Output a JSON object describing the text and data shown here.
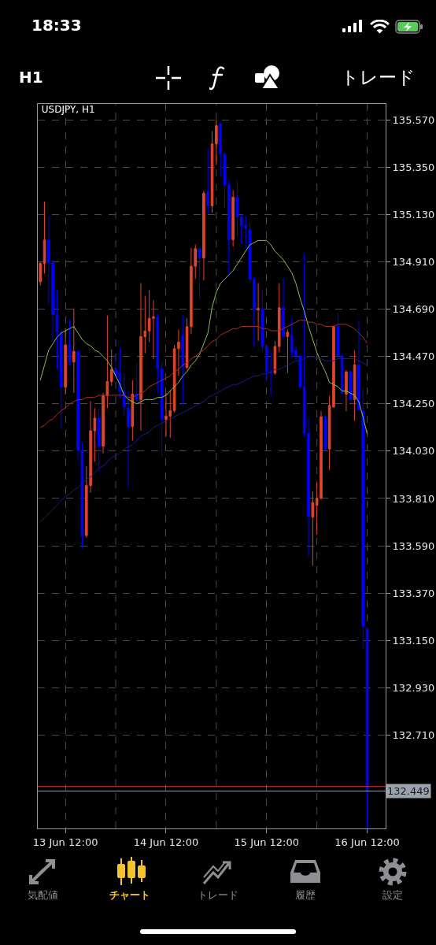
{
  "chart_data": {
    "type": "candlestick",
    "title": "USDJPY, H1",
    "categories": [
      null,
      null,
      null,
      null,
      null,
      null,
      "13 Jun 12:00",
      null,
      null,
      null,
      null,
      null,
      null,
      null,
      null,
      null,
      null,
      null,
      null,
      null,
      null,
      null,
      null,
      null,
      null,
      null,
      null,
      null,
      null,
      null,
      "14 Jun 12:00",
      null,
      null,
      null,
      null,
      null,
      null,
      null,
      null,
      null,
      null,
      null,
      null,
      null,
      null,
      null,
      null,
      null,
      null,
      null,
      null,
      null,
      null,
      null,
      "15 Jun 12:00",
      null,
      null,
      null,
      null,
      null,
      null,
      null,
      null,
      null,
      null,
      null,
      null,
      null,
      null,
      null,
      null,
      null,
      null,
      null,
      null,
      null,
      null,
      null,
      "16 Jun 12:00"
    ],
    "ylim": [
      132.275,
      135.645
    ],
    "yticks": [
      {
        "value": 132.71,
        "label": "132.710"
      },
      {
        "value": 132.93,
        "label": "132.930"
      },
      {
        "value": 133.15,
        "label": "133.150"
      },
      {
        "value": 133.37,
        "label": "133.370"
      },
      {
        "value": 133.59,
        "label": "133.590"
      },
      {
        "value": 133.81,
        "label": "133.810"
      },
      {
        "value": 134.03,
        "label": "134.030"
      },
      {
        "value": 134.25,
        "label": "134.250"
      },
      {
        "value": 134.47,
        "label": "134.470"
      },
      {
        "value": 134.69,
        "label": "134.690"
      },
      {
        "value": 134.91,
        "label": "134.910"
      },
      {
        "value": 135.13,
        "label": "135.130"
      },
      {
        "value": 135.35,
        "label": "135.350"
      },
      {
        "value": 135.57,
        "label": "135.570"
      }
    ],
    "grid": true,
    "series": [
      {
        "type": "line",
        "color": "#8cc152",
        "values": [
          134.36,
          134.43,
          134.5,
          134.53,
          134.56,
          134.58,
          134.59,
          134.6,
          134.61,
          134.58,
          134.55,
          134.53,
          134.52,
          134.5,
          134.49,
          134.47,
          134.45,
          134.42,
          134.38,
          134.34,
          134.29,
          134.27,
          134.26,
          134.25,
          134.26,
          134.27,
          134.27,
          134.27,
          134.28,
          134.28,
          134.29,
          134.31,
          134.33,
          134.35,
          134.38,
          134.4,
          134.43,
          134.45,
          134.48,
          134.53,
          134.58,
          134.7,
          134.77,
          134.81,
          134.83,
          134.85,
          134.87,
          134.9,
          134.93,
          134.96,
          134.99,
          135.0,
          135.01,
          135.01,
          135.01,
          134.99,
          134.96,
          134.94,
          134.92,
          134.89,
          134.86,
          134.81,
          134.74,
          134.68,
          134.61,
          134.55,
          134.49,
          134.44,
          134.4,
          134.35,
          134.34,
          134.33,
          134.31,
          134.31,
          134.3,
          134.29,
          134.26,
          134.19,
          134.11
        ]
      },
      {
        "type": "line",
        "color": "#a8321e",
        "values": [
          134.14,
          134.15,
          134.17,
          134.18,
          134.2,
          134.22,
          134.23,
          134.25,
          134.26,
          134.27,
          134.27,
          134.28,
          134.28,
          134.28,
          134.29,
          134.29,
          134.29,
          134.29,
          134.29,
          134.29,
          134.29,
          134.28,
          134.28,
          134.29,
          134.3,
          134.31,
          134.33,
          134.34,
          134.35,
          134.36,
          134.37,
          134.38,
          134.4,
          134.41,
          134.43,
          134.44,
          134.46,
          134.47,
          134.49,
          134.5,
          134.52,
          134.54,
          134.55,
          134.57,
          134.58,
          134.59,
          134.6,
          134.6,
          134.61,
          134.61,
          134.61,
          134.61,
          134.61,
          134.6,
          134.6,
          134.59,
          134.59,
          134.59,
          134.6,
          134.61,
          134.62,
          134.63,
          134.64,
          134.64,
          134.63,
          134.63,
          134.62,
          134.62,
          134.61,
          134.61,
          134.61,
          134.62,
          134.62,
          134.62,
          134.61,
          134.6,
          134.58,
          134.56,
          134.53
        ]
      },
      {
        "type": "line",
        "color": "#1c1c8f",
        "values": [
          133.7,
          133.72,
          133.74,
          133.76,
          133.78,
          133.8,
          133.82,
          133.83,
          133.85,
          133.86,
          133.88,
          133.9,
          133.91,
          133.93,
          133.95,
          133.96,
          133.98,
          134.0,
          134.01,
          134.02,
          134.04,
          134.05,
          134.06,
          134.08,
          134.1,
          134.11,
          134.12,
          134.14,
          134.15,
          134.16,
          134.17,
          134.18,
          134.19,
          134.2,
          134.21,
          134.22,
          134.23,
          134.24,
          134.25,
          134.26,
          134.28,
          134.29,
          134.3,
          134.31,
          134.32,
          134.33,
          134.34,
          134.34,
          134.35,
          134.36,
          134.37,
          134.38,
          134.38,
          134.39,
          134.39,
          134.4,
          134.41,
          134.41,
          134.42,
          134.43,
          134.44,
          134.45,
          134.45,
          134.46,
          134.47,
          134.47,
          134.46,
          134.46,
          134.45,
          134.45,
          134.45,
          134.46,
          134.46,
          134.46,
          134.46,
          134.46,
          134.45,
          134.44,
          134.43
        ]
      },
      {
        "type": "candlestick",
        "ohlc": [
          [
            134.818,
            134.91,
            134.8,
            134.903
          ],
          [
            134.903,
            135.191,
            134.857,
            135.012
          ],
          [
            135.012,
            135.125,
            134.713,
            134.906
          ],
          [
            134.906,
            134.92,
            134.543,
            134.664
          ],
          [
            134.664,
            134.779,
            134.413,
            134.583
          ],
          [
            134.583,
            134.596,
            134.131,
            134.328
          ],
          [
            134.328,
            134.602,
            134.295,
            134.524
          ],
          [
            134.524,
            134.641,
            134.426,
            134.445
          ],
          [
            134.445,
            134.694,
            134.301,
            134.494
          ],
          [
            134.494,
            134.5,
            133.994,
            134.033
          ],
          [
            134.033,
            134.073,
            133.582,
            133.634
          ],
          [
            133.638,
            133.961,
            133.628,
            133.87
          ],
          [
            133.87,
            134.262,
            133.837,
            134.125
          ],
          [
            134.125,
            134.23,
            133.981,
            134.184
          ],
          [
            134.184,
            134.23,
            133.935,
            134.053
          ],
          [
            134.053,
            134.301,
            134.02,
            134.288
          ],
          [
            134.288,
            134.661,
            134.23,
            134.354
          ],
          [
            134.354,
            134.504,
            134.334,
            134.41
          ],
          [
            134.41,
            134.471,
            134.373,
            134.38
          ],
          [
            134.393,
            134.511,
            134.275,
            134.308
          ],
          [
            134.308,
            134.393,
            134.197,
            134.236
          ],
          [
            134.229,
            134.308,
            133.863,
            134.145
          ],
          [
            134.145,
            134.36,
            134.079,
            134.295
          ],
          [
            134.295,
            134.439,
            134.256,
            134.269
          ],
          [
            134.269,
            134.812,
            134.125,
            134.563
          ],
          [
            134.563,
            134.753,
            134.485,
            134.589
          ],
          [
            134.589,
            134.779,
            134.537,
            134.648
          ],
          [
            134.648,
            134.733,
            134.458,
            134.655
          ],
          [
            134.655,
            134.67,
            134.301,
            134.413
          ],
          [
            134.413,
            134.445,
            134.007,
            134.177
          ],
          [
            134.177,
            134.301,
            134.099,
            134.193
          ],
          [
            134.193,
            134.315,
            134.092,
            134.219
          ],
          [
            134.219,
            134.524,
            134.21,
            134.507
          ],
          [
            134.507,
            134.596,
            134.38,
            134.537
          ],
          [
            134.57,
            134.661,
            134.243,
            134.426
          ],
          [
            134.419,
            134.648,
            134.413,
            134.609
          ],
          [
            134.609,
            134.975,
            134.576,
            134.89
          ],
          [
            134.89,
            134.991,
            134.831,
            134.972
          ],
          [
            134.972,
            134.975,
            134.74,
            134.929
          ],
          [
            134.929,
            135.24,
            134.825,
            135.23
          ],
          [
            135.237,
            135.439,
            135.132,
            135.171
          ],
          [
            135.171,
            135.518,
            135.139,
            135.459
          ],
          [
            135.459,
            135.57,
            135.361,
            135.544
          ],
          [
            135.553,
            135.557,
            135.309,
            135.413
          ],
          [
            135.413,
            135.42,
            135.158,
            135.269
          ],
          [
            135.269,
            135.296,
            134.857,
            135.014
          ],
          [
            135.014,
            135.243,
            134.982,
            135.211
          ],
          [
            135.211,
            135.289,
            135.027,
            135.119
          ],
          [
            135.119,
            135.132,
            134.995,
            135.08
          ],
          [
            135.08,
            135.125,
            134.975,
            135.067
          ],
          [
            135.06,
            135.093,
            134.812,
            134.831
          ],
          [
            134.831,
            134.844,
            134.517,
            134.687
          ],
          [
            134.687,
            134.812,
            134.543,
            134.694
          ],
          [
            134.694,
            134.779,
            134.491,
            134.517
          ],
          [
            134.517,
            134.52,
            134.36,
            134.4
          ],
          [
            134.4,
            134.498,
            134.288,
            134.393
          ],
          [
            134.393,
            134.543,
            134.386,
            134.517
          ],
          [
            134.517,
            134.812,
            134.491,
            134.697
          ],
          [
            134.697,
            134.831,
            134.556,
            134.563
          ],
          [
            134.563,
            134.596,
            134.393,
            134.583
          ],
          [
            134.57,
            134.648,
            134.465,
            134.491
          ],
          [
            134.498,
            134.52,
            134.458,
            134.472
          ],
          [
            134.472,
            134.48,
            134.32,
            134.328
          ],
          [
            134.328,
            134.949,
            134.099,
            134.112
          ],
          [
            134.112,
            134.184,
            133.54,
            133.726
          ],
          [
            133.723,
            133.844,
            133.497,
            133.791
          ],
          [
            133.778,
            133.883,
            133.641,
            133.811
          ],
          [
            133.811,
            134.216,
            133.804,
            134.19
          ],
          [
            134.19,
            134.197,
            134.033,
            134.04
          ],
          [
            134.04,
            134.288,
            133.942,
            134.243
          ],
          [
            134.236,
            134.615,
            134.23,
            134.609
          ],
          [
            134.609,
            134.674,
            134.465,
            134.472
          ],
          [
            134.472,
            134.48,
            134.295,
            134.301
          ],
          [
            134.295,
            134.406,
            134.216,
            134.399
          ],
          [
            134.399,
            134.406,
            134.262,
            134.269
          ],
          [
            134.269,
            134.498,
            134.171,
            134.432
          ],
          [
            134.432,
            134.635,
            134.216,
            134.223
          ],
          [
            134.216,
            134.321,
            133.113,
            133.217
          ],
          [
            133.204,
            133.21,
            132.276,
            132.449
          ]
        ],
        "colors": [
          "#e0452b",
          "#e0452b",
          "#0000ff",
          "#0000ff",
          "#0000ff",
          "#0000ff",
          "#e0452b",
          "#0000ff",
          "#e0452b",
          "#0000ff",
          "#0000ff",
          "#e0452b",
          "#e0452b",
          "#e0452b",
          "#0000ff",
          "#e0452b",
          "#e0452b",
          "#e0452b",
          "#0000ff",
          "#0000ff",
          "#0000ff",
          "#0000ff",
          "#e0452b",
          "#0000ff",
          "#e0452b",
          "#e0452b",
          "#e0452b",
          "#e0452b",
          "#0000ff",
          "#0000ff",
          "#e0452b",
          "#e0452b",
          "#e0452b",
          "#e0452b",
          "#0000ff",
          "#e0452b",
          "#e0452b",
          "#e0452b",
          "#0000ff",
          "#e0452b",
          "#0000ff",
          "#e0452b",
          "#e0452b",
          "#0000ff",
          "#0000ff",
          "#0000ff",
          "#e0452b",
          "#0000ff",
          "#0000ff",
          "#0000ff",
          "#0000ff",
          "#0000ff",
          "#e0452b",
          "#0000ff",
          "#0000ff",
          "#0000ff",
          "#e0452b",
          "#e0452b",
          "#0000ff",
          "#e0452b",
          "#0000ff",
          "#0000ff",
          "#0000ff",
          "#0000ff",
          "#0000ff",
          "#e0452b",
          "#e0452b",
          "#e0452b",
          "#0000ff",
          "#e0452b",
          "#e0452b",
          "#0000ff",
          "#0000ff",
          "#e0452b",
          "#0000ff",
          "#e0452b",
          "#0000ff",
          "#0000ff",
          "#0000ff"
        ]
      }
    ],
    "ref_lines": [
      {
        "axis": "y",
        "value": 132.47,
        "label": null,
        "color": "#e0392a"
      },
      {
        "axis": "y",
        "value": 132.449,
        "label": "132.449",
        "color": "#9aa3ad"
      }
    ],
    "annotations": [
      "18:33",
      "H1",
      "トレード",
      "気配値",
      "チャート",
      "トレード",
      "履歴",
      "設定"
    ]
  }
}
